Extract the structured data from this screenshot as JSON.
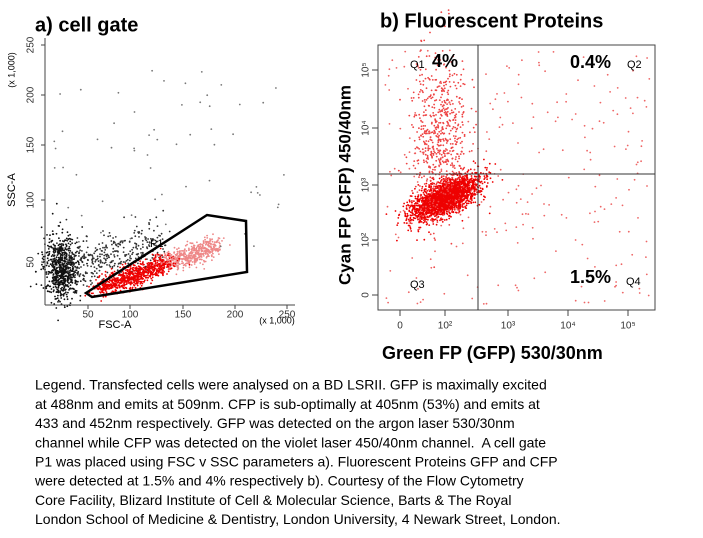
{
  "panels": [
    {
      "title": "a) cell gate",
      "x_label": "FSC-A",
      "y_label": "SSC-A",
      "x_ticks": [
        "50",
        "100",
        "150",
        "200",
        "250"
      ],
      "y_ticks": [
        "50",
        "100",
        "150",
        "200",
        "250"
      ],
      "x_scale": "(x 1,000)",
      "y_scale": "(x 1,000)",
      "gate_label": "P1"
    },
    {
      "title": "b) Fluorescent Proteins",
      "x_label": "Green FP (GFP)  530/30nm",
      "y_label": "Cyan FP (CFP) 450/40nm",
      "x_ticks": [
        "0",
        "10²",
        "10³",
        "10⁴",
        "10⁵"
      ],
      "y_ticks": [
        "0",
        "10²",
        "10³",
        "10⁴",
        "10⁵"
      ],
      "quadrants": [
        {
          "name": "Q1",
          "percent": "4%"
        },
        {
          "name": "Q2",
          "percent": "0.4%"
        },
        {
          "name": "Q3"
        },
        {
          "name": "Q4",
          "percent": "1.5%"
        }
      ]
    }
  ],
  "legend": [
    "Legend. Transfected cells were analysed on a BD LSRII. GFP is maximally excited",
    "at 488nm and emits at 509nm. CFP is sub-optimally at 405nm (53%) and emits at",
    "433 and 452nm respectively. GFP was detected on the argon laser 530/30nm",
    "channel while CFP was detected on the violet laser 450/40nm channel.  A cell gate",
    "P1 was placed using FSC v SSC parameters a). Fluorescent Proteins GFP and CFP",
    "were detected at 1.5% and 4% respectively b). Courtesy of the Flow Cytometry",
    "Core Facility, Blizard Institute of Cell & Molecular Science, Barts & The Royal",
    "London School of Medicine & Dentistry, London University, 4 Newark Street, London."
  ]
}
